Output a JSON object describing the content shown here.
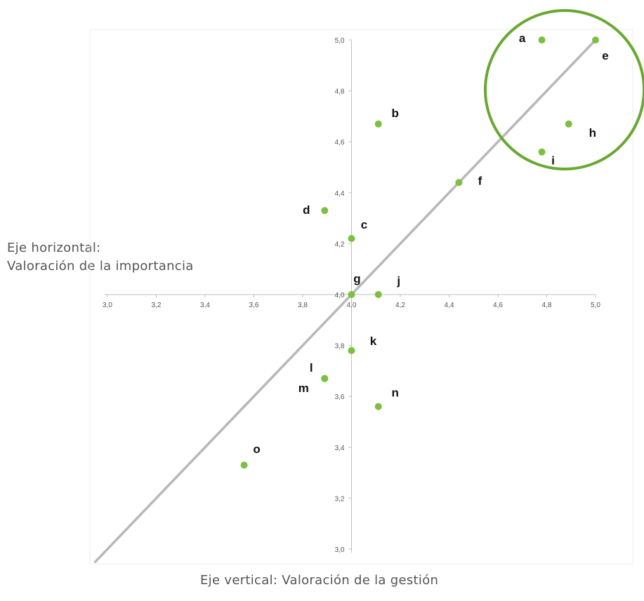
{
  "h_axis_title_line1": "Eje horizontal:",
  "h_axis_title_line2": "Valoración de la importancia",
  "v_axis_title": "Eje vertical: Valoración de la gestión",
  "colors": {
    "point": "#7bc043",
    "diagonal": "#b8b8b8",
    "circle": "#6aa832",
    "axis": "#bfbfbf"
  },
  "chart_data": {
    "type": "scatter",
    "xlim": [
      3.0,
      5.0
    ],
    "ylim": [
      3.0,
      5.0
    ],
    "x_ticks": [
      "3,0",
      "3,2",
      "3,4",
      "3,6",
      "3,8",
      "4,0",
      "4,2",
      "4,4",
      "4,6",
      "4,8",
      "5,0"
    ],
    "y_ticks": [
      "3,0",
      "3,2",
      "3,4",
      "3,6",
      "3,8",
      "4,0",
      "4,2",
      "4,4",
      "4,6",
      "4,8",
      "5,0"
    ],
    "axes_cross_at": [
      4.0,
      4.0
    ],
    "grid": false,
    "diagonal_reference_line": true,
    "highlight_circle_points": [
      "a",
      "e",
      "h",
      "i"
    ],
    "points": [
      {
        "label": "a",
        "x": 4.78,
        "y": 5.0
      },
      {
        "label": "b",
        "x": 4.11,
        "y": 4.67
      },
      {
        "label": "c",
        "x": 4.0,
        "y": 4.22
      },
      {
        "label": "d",
        "x": 3.89,
        "y": 4.33
      },
      {
        "label": "e",
        "x": 5.0,
        "y": 5.0
      },
      {
        "label": "f",
        "x": 4.44,
        "y": 4.44
      },
      {
        "label": "g",
        "x": 4.0,
        "y": 4.0
      },
      {
        "label": "h",
        "x": 4.89,
        "y": 4.67
      },
      {
        "label": "i",
        "x": 4.78,
        "y": 4.56
      },
      {
        "label": "j",
        "x": 4.11,
        "y": 4.0
      },
      {
        "label": "k",
        "x": 4.0,
        "y": 3.78
      },
      {
        "label": "l",
        "x": 3.89,
        "y": 3.67
      },
      {
        "label": "m",
        "x": 3.89,
        "y": 3.67
      },
      {
        "label": "n",
        "x": 4.11,
        "y": 3.56
      },
      {
        "label": "o",
        "x": 3.56,
        "y": 3.33
      }
    ]
  }
}
